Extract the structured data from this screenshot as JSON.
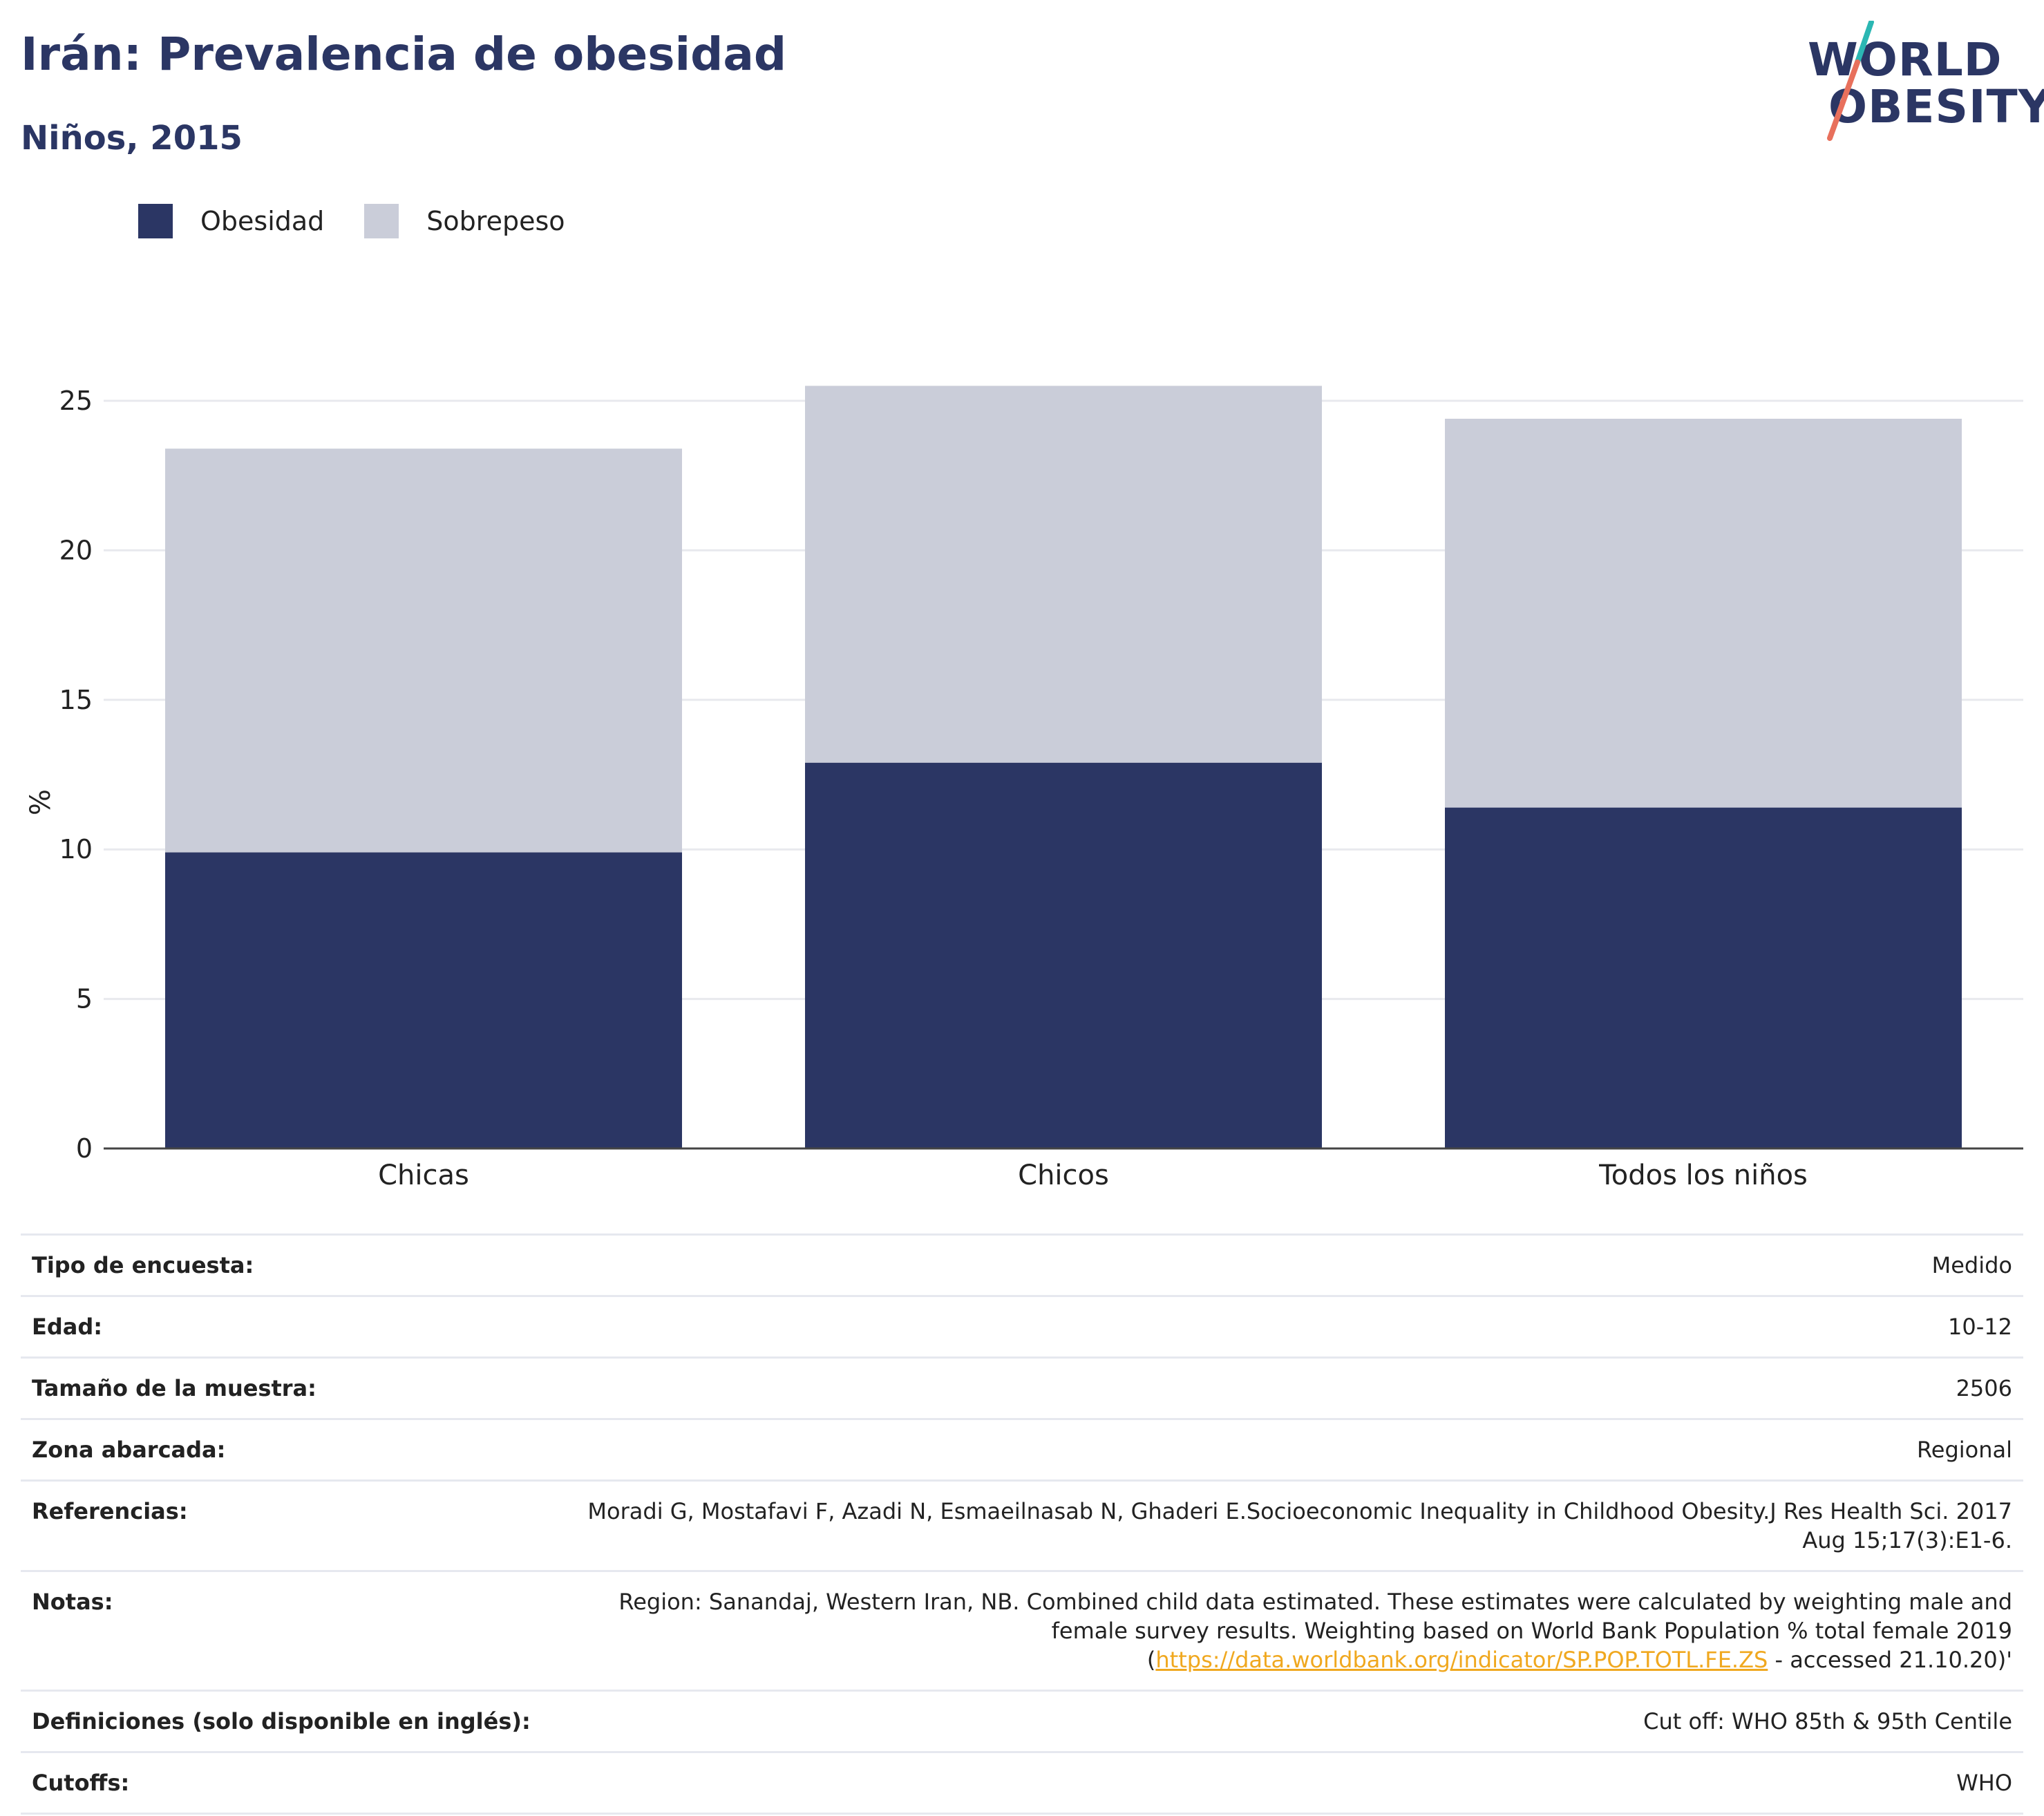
{
  "title": "Irán: Prevalencia de obesidad",
  "subtitle": "Niños, 2015",
  "logo": {
    "line1": "WORLD",
    "line2": "OBESITY"
  },
  "colors": {
    "obesity": "#2b3664",
    "overweight": "#cacdd9",
    "accent_teal": "#2bb7b3",
    "accent_coral": "#e8705c",
    "link": "#f0a81f"
  },
  "legend": [
    {
      "label": "Obesidad",
      "color": "#2b3664"
    },
    {
      "label": "Sobrepeso",
      "color": "#cacdd9"
    }
  ],
  "chart_data": {
    "type": "bar",
    "stacked": true,
    "categories": [
      "Chicas",
      "Chicos",
      "Todos los niños"
    ],
    "series": [
      {
        "name": "Obesidad",
        "values": [
          9.9,
          12.9,
          11.4
        ]
      },
      {
        "name": "Sobrepeso",
        "values": [
          13.5,
          12.6,
          13.0
        ]
      }
    ],
    "ylabel": "%",
    "ylim": [
      0,
      25
    ],
    "yticks": [
      0,
      5,
      10,
      15,
      20,
      25
    ],
    "grid": true,
    "legend_position": "top-left"
  },
  "meta": [
    {
      "key": "Tipo de encuesta:",
      "value": "Medido"
    },
    {
      "key": "Edad:",
      "value": "10-12"
    },
    {
      "key": "Tamaño de la muestra:",
      "value": "2506"
    },
    {
      "key": "Zona abarcada:",
      "value": "Regional"
    },
    {
      "key": "Referencias:",
      "value": "Moradi G, Mostafavi F, Azadi N, Esmaeilnasab N, Ghaderi E.Socioeconomic Inequality in Childhood Obesity.J Res Health Sci. 2017 Aug 15;17(3):E1-6."
    },
    {
      "key": "Notas:",
      "value": "Region: Sanandaj, Western Iran, NB. Combined child data estimated. These estimates were calculated by weighting male and female survey results. Weighting based on World Bank Population % total female 2019 (",
      "link": "https://data.worldbank.org/indicator/SP.POP.TOTL.FE.ZS",
      "value_after": " - accessed 21.10.20)'"
    },
    {
      "key": "Definiciones (solo disponible en inglés):",
      "value": "Cut off: WHO 85th & 95th Centile"
    },
    {
      "key": "Cutoffs:",
      "value": "WHO"
    }
  ]
}
